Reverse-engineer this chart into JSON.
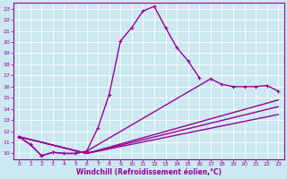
{
  "xlabel": "Windchill (Refroidissement éolien,°C)",
  "background_color": "#cce8f0",
  "line_color": "#990099",
  "grid_color": "#aaccdd",
  "xlim": [
    -0.5,
    23.5
  ],
  "ylim": [
    9.5,
    23.5
  ],
  "xticks": [
    0,
    1,
    2,
    3,
    4,
    5,
    6,
    7,
    8,
    9,
    10,
    11,
    12,
    13,
    14,
    15,
    16,
    17,
    18,
    19,
    20,
    21,
    22,
    23
  ],
  "yticks": [
    10,
    11,
    12,
    13,
    14,
    15,
    16,
    17,
    18,
    19,
    20,
    21,
    22,
    23
  ],
  "curve1_x": [
    0,
    1,
    2,
    3,
    4,
    5,
    6,
    7,
    8,
    9,
    10,
    11,
    12,
    13,
    14,
    15,
    16
  ],
  "curve1_y": [
    11.5,
    10.8,
    9.8,
    10.1,
    10.0,
    10.0,
    10.2,
    12.3,
    15.3,
    20.1,
    21.3,
    22.8,
    23.2,
    21.3,
    19.5,
    18.3,
    16.8
  ],
  "curve1_marker": true,
  "curve2_x": [
    0,
    1,
    2,
    3,
    4,
    5,
    6,
    17,
    18,
    19,
    20,
    21,
    22,
    23
  ],
  "curve2_y": [
    11.5,
    10.8,
    9.8,
    10.1,
    10.0,
    10.0,
    10.2,
    16.7,
    16.2,
    16.0,
    16.0,
    16.0,
    16.1,
    15.6
  ],
  "curve2_marker": true,
  "curve3_x": [
    0,
    6,
    23
  ],
  "curve3_y": [
    11.5,
    10.0,
    14.8
  ],
  "curve3_marker": false,
  "curve4_x": [
    0,
    6,
    23
  ],
  "curve4_y": [
    11.5,
    10.0,
    14.2
  ],
  "curve4_marker": false,
  "curve5_x": [
    0,
    6,
    23
  ],
  "curve5_y": [
    11.5,
    10.0,
    13.5
  ],
  "curve5_marker": false
}
